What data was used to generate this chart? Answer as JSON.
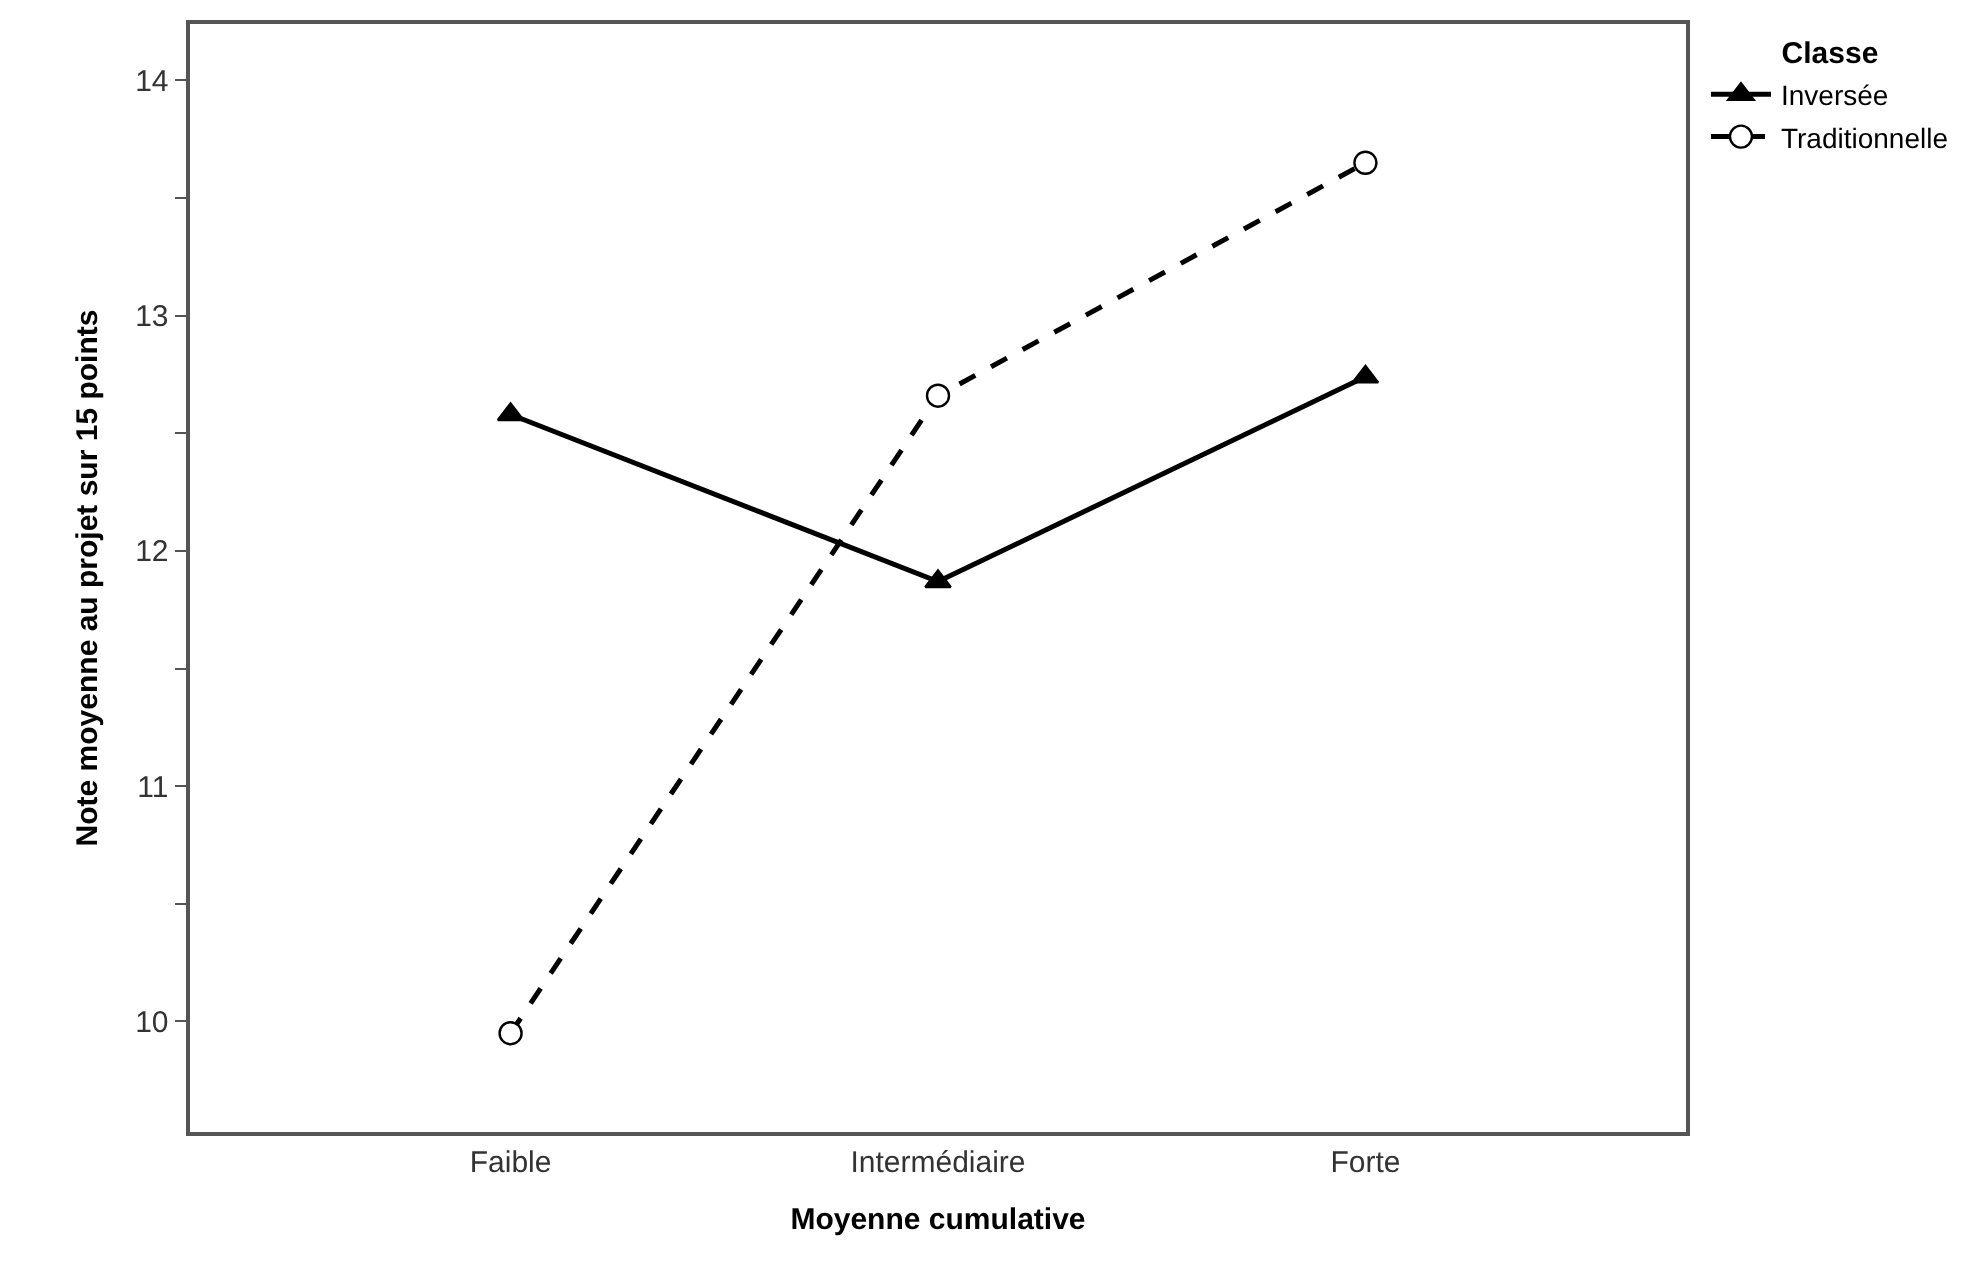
{
  "chart_data": {
    "type": "line",
    "xlabel": "Moyenne cumulative",
    "ylabel": "Note moyenne au projet sur 15 points",
    "legend_title": "Classe",
    "categories": [
      "Faible",
      "Intermédiaire",
      "Forte"
    ],
    "series": [
      {
        "name": "Inversée",
        "color": "#000000",
        "values": [
          12.58,
          11.87,
          12.74
        ],
        "line_style": "solid",
        "marker": "triangle"
      },
      {
        "name": "Traditionnelle",
        "color": "#000000",
        "values": [
          9.95,
          12.66,
          13.65
        ],
        "line_style": "dashed",
        "marker": "circle"
      }
    ],
    "ylim": [
      9.53,
      14.24
    ],
    "yticks": [
      10,
      {
        "value": 10.5,
        "label": null
      },
      11,
      {
        "value": 11.5,
        "label": null
      },
      12,
      {
        "value": 12.5,
        "label": null
      },
      13,
      {
        "value": 13.5,
        "label": null
      },
      14
    ],
    "legend": "top right"
  }
}
